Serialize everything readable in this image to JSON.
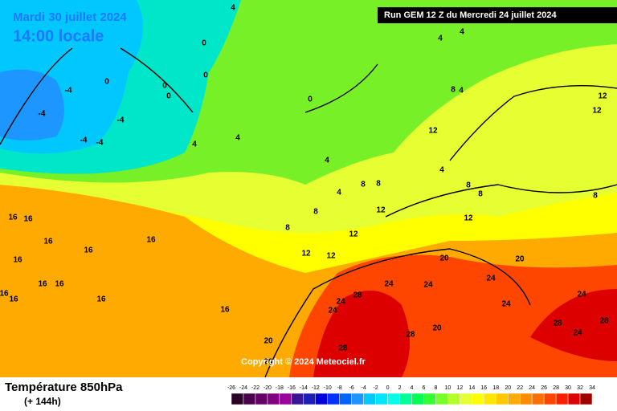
{
  "header": {
    "date": "Mardi 30 juillet 2024",
    "time": "14:00 locale",
    "run": "Run GEM 12 Z du Mercredi 24 juillet 2024"
  },
  "copyright": "Copyright © 2024 Meteociel.fr",
  "footer": {
    "title": "Température 850hPa",
    "lead": "(+ 144h)"
  },
  "scale": {
    "values": [
      -26,
      -24,
      -22,
      -20,
      -18,
      -16,
      -14,
      -12,
      -10,
      -8,
      -6,
      -4,
      -2,
      0,
      2,
      4,
      6,
      8,
      10,
      12,
      14,
      16,
      18,
      20,
      22,
      24,
      26,
      28,
      30,
      32,
      34
    ],
    "colors": [
      "#2a002a",
      "#4b004b",
      "#660066",
      "#800080",
      "#9a009a",
      "#3c1496",
      "#1e1eb4",
      "#0000dc",
      "#0032ff",
      "#0064ff",
      "#1e96ff",
      "#00c8ff",
      "#00e6ff",
      "#00ffe6",
      "#00ff96",
      "#00ff50",
      "#32ff32",
      "#78ff28",
      "#b4ff28",
      "#e6ff32",
      "#ffff00",
      "#ffe600",
      "#ffc800",
      "#ffaa00",
      "#ff8c00",
      "#ff6e00",
      "#ff4600",
      "#ff1e00",
      "#dc0000",
      "#a00000"
    ]
  },
  "map": {
    "labels": [
      "4",
      "0",
      "4",
      "4",
      "4",
      "0",
      "0",
      "4",
      "-4",
      "-4",
      "-4",
      "-4",
      "-4",
      "4",
      "0",
      "0",
      "0",
      "4",
      "4",
      "4",
      "8",
      "8",
      "12",
      "12",
      "12",
      "12",
      "8",
      "8",
      "8",
      "8",
      "8",
      "8",
      "12",
      "12",
      "12",
      "12",
      "16",
      "16",
      "16",
      "16",
      "16",
      "16",
      "16",
      "16",
      "16",
      "16",
      "16",
      "16",
      "20",
      "20",
      "20",
      "20",
      "20",
      "24",
      "24",
      "24",
      "24",
      "24",
      "24",
      "28",
      "28",
      "28",
      "28",
      "24",
      "24",
      "28"
    ]
  }
}
